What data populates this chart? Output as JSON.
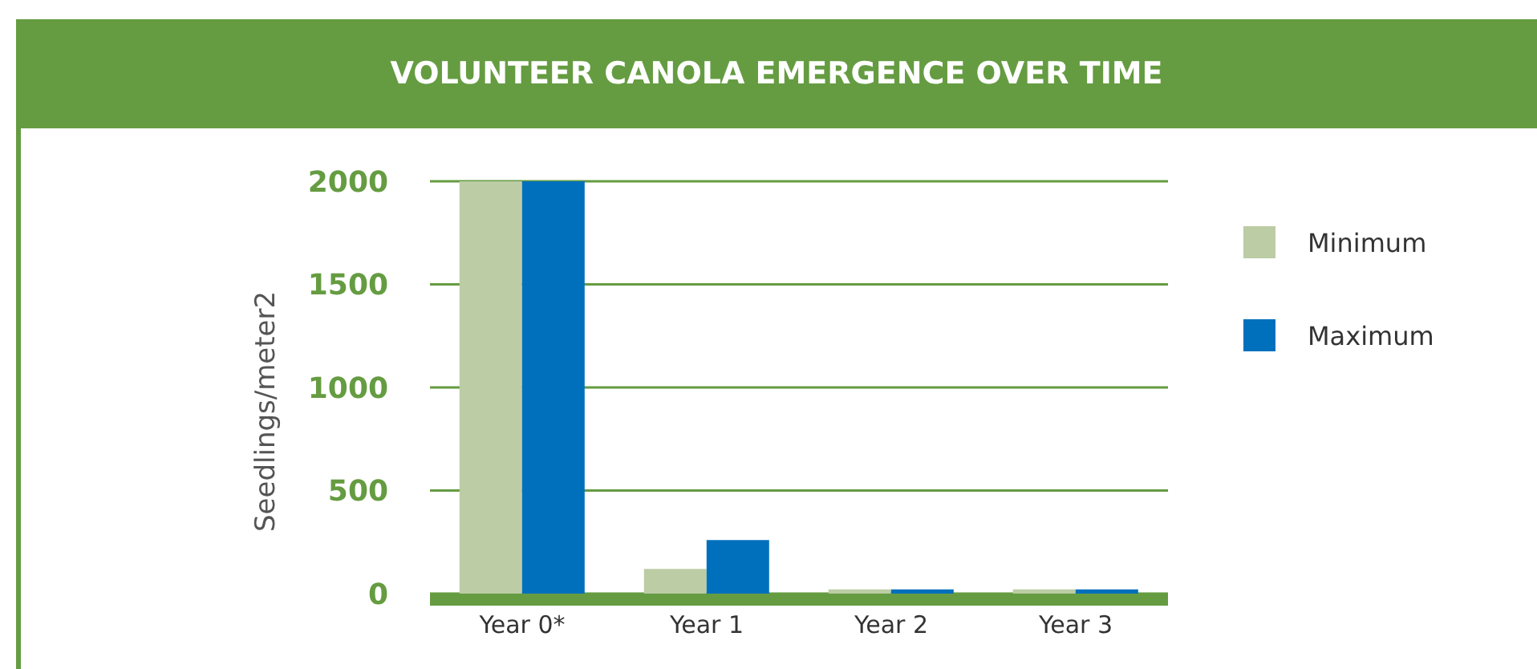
{
  "chart_data": {
    "type": "bar",
    "title": "VOLUNTEER CANOLA EMERGENCE OVER TIME",
    "ylabel": "Seedlings/meter2",
    "categories": [
      "Year 0*",
      "Year 1",
      "Year 2",
      "Year 3"
    ],
    "series": [
      {
        "name": "Minimum",
        "color": "#bccca4",
        "values": [
          2000,
          120,
          20,
          20
        ]
      },
      {
        "name": "Maximum",
        "color": "#0070bc",
        "values": [
          2000,
          260,
          20,
          20
        ]
      }
    ],
    "ylim": [
      0,
      2000
    ],
    "yticks": [
      0,
      500,
      1000,
      1500,
      2000
    ],
    "grid": "y",
    "legend": "right"
  }
}
